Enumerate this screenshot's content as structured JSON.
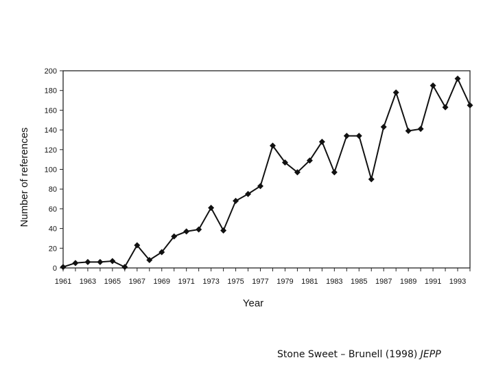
{
  "chart_data": {
    "type": "line",
    "title": "",
    "xlabel": "Year",
    "ylabel": "Number of references",
    "xlim": [
      1961,
      1994
    ],
    "ylim": [
      0,
      200
    ],
    "yticks": [
      0,
      20,
      40,
      60,
      80,
      100,
      120,
      140,
      160,
      180,
      200
    ],
    "xticks": [
      1961,
      1963,
      1965,
      1967,
      1969,
      1971,
      1973,
      1975,
      1977,
      1979,
      1981,
      1983,
      1985,
      1987,
      1989,
      1991,
      1993
    ],
    "grid": false,
    "legend": "none",
    "line_color": "#111111",
    "marker": "diamond",
    "series": [
      {
        "x": [
          1961,
          1962,
          1963,
          1964,
          1965,
          1966,
          1967,
          1968,
          1969,
          1970,
          1971,
          1972,
          1973,
          1974,
          1975,
          1976,
          1977,
          1978,
          1979,
          1980,
          1981,
          1982,
          1983,
          1984,
          1985,
          1986,
          1987,
          1988,
          1989,
          1990,
          1991,
          1992,
          1993,
          1994
        ],
        "values": [
          1,
          5,
          6,
          6,
          7,
          1,
          23,
          8,
          16,
          32,
          37,
          39,
          61,
          38,
          68,
          75,
          83,
          124,
          107,
          97,
          109,
          128,
          97,
          134,
          134,
          90,
          143,
          178,
          139,
          141,
          185,
          163,
          192,
          165
        ]
      }
    ]
  },
  "caption": {
    "text": "Stone Sweet – Brunell (1998) ",
    "journal": "JEPP"
  }
}
